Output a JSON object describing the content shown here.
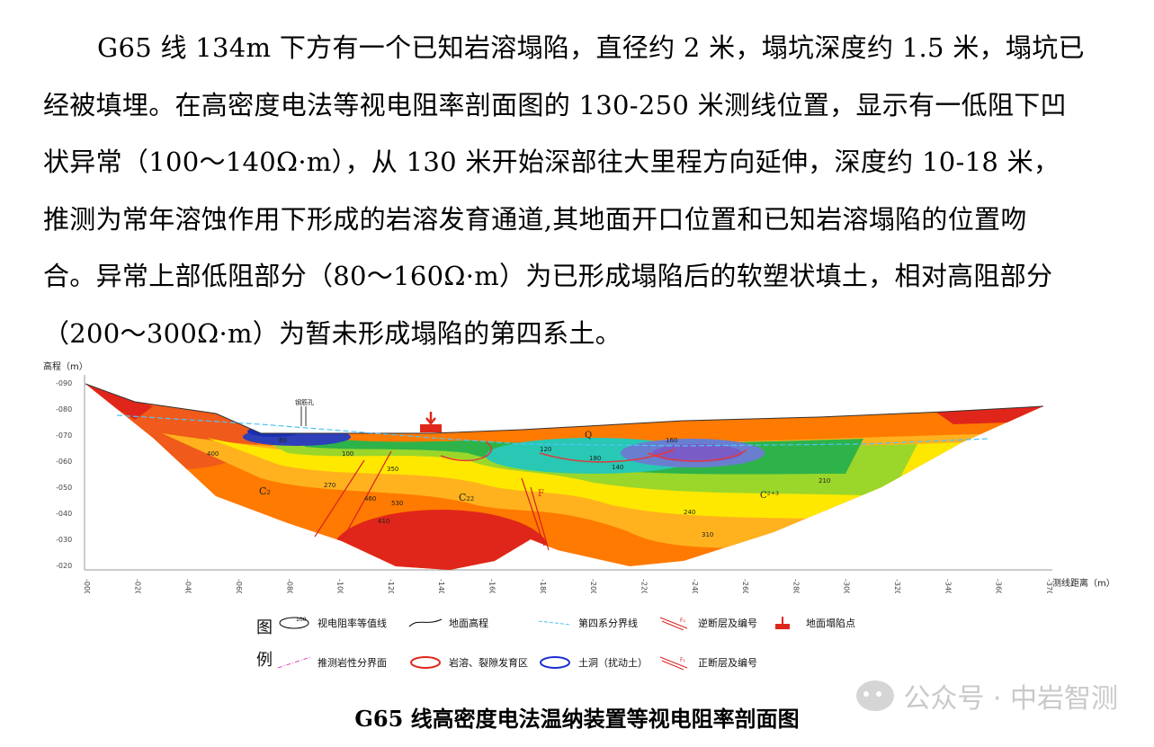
{
  "paragraph": {
    "lines": [
      "G65 线 134m 下方有一个已知岩溶塌陷，直径约 2 米，塌坑深度约 1.5 米，塌坑已",
      "经被填埋。在高密度电法等视电阻率剖面图的 130-250 米测线位置，显示有一低阻下凹",
      "状异常（100～140Ω·m），从 130 米开始深部往大里程方向延伸，深度约 10-18 米，",
      "推测为常年溶蚀作用下形成的岩溶发育通道,其地面开口位置和已知岩溶塌陷的位置吻",
      "合。异常上部低阻部分（80～160Ω·m）为已形成塌陷后的软塑状填土，相对高阻部分",
      "（200～300Ω·m）为暂未形成塌陷的第四系土。"
    ]
  },
  "figure": {
    "y_axis_title": "高程（m）",
    "x_axis_title": "测线距离（m）",
    "y_ticks": [
      "-090",
      "-080",
      "-070",
      "-060",
      "-050",
      "-040",
      "-030",
      "-020"
    ],
    "x_ticks": [
      "-000",
      "-020",
      "-040",
      "-060",
      "-080",
      "-100",
      "-120",
      "-140",
      "-160",
      "-180",
      "-200",
      "-220",
      "-240",
      "-260",
      "-280",
      "-300",
      "-320",
      "-340",
      "-360",
      "-370"
    ],
    "annotations": {
      "boreholes": "钢筋孔",
      "q": "Q",
      "c2_left": "C₂",
      "c2_mid": "C₂₂",
      "c23": "C²⁺³",
      "fault": "F",
      "contours": [
        "410",
        "530",
        "350",
        "270",
        "180",
        "80",
        "140",
        "160",
        "100",
        "120",
        "240",
        "210",
        "310",
        "400",
        "460"
      ]
    }
  },
  "legend": {
    "head_1": "图",
    "head_2": "例",
    "items": [
      {
        "label": "视电阻率等值线",
        "sym_text": "100"
      },
      {
        "label": "地面高程"
      },
      {
        "label": "第四系分界线"
      },
      {
        "label": "逆断层及编号",
        "sym_text": "F₂"
      },
      {
        "label": "地面塌陷点"
      },
      {
        "label": "推测岩性分界面"
      },
      {
        "label": "岩溶、裂隙发育区"
      },
      {
        "label": "土洞（扰动土）"
      },
      {
        "label": "正断层及编号",
        "sym_text": "F₁"
      }
    ]
  },
  "caption": "G65 线高密度电法温纳装置等视电阻率剖面图",
  "watermark": {
    "text": "公众号 · 中岩智测",
    "icon": "wechat-icon"
  },
  "colors": {
    "red": "#e3261a",
    "orange": "#f7941d",
    "yellow": "#ffe800",
    "green": "#2db34a",
    "cyan": "#28c8b4",
    "blue": "#2e3fb8",
    "purple": "#7a5cc7"
  }
}
